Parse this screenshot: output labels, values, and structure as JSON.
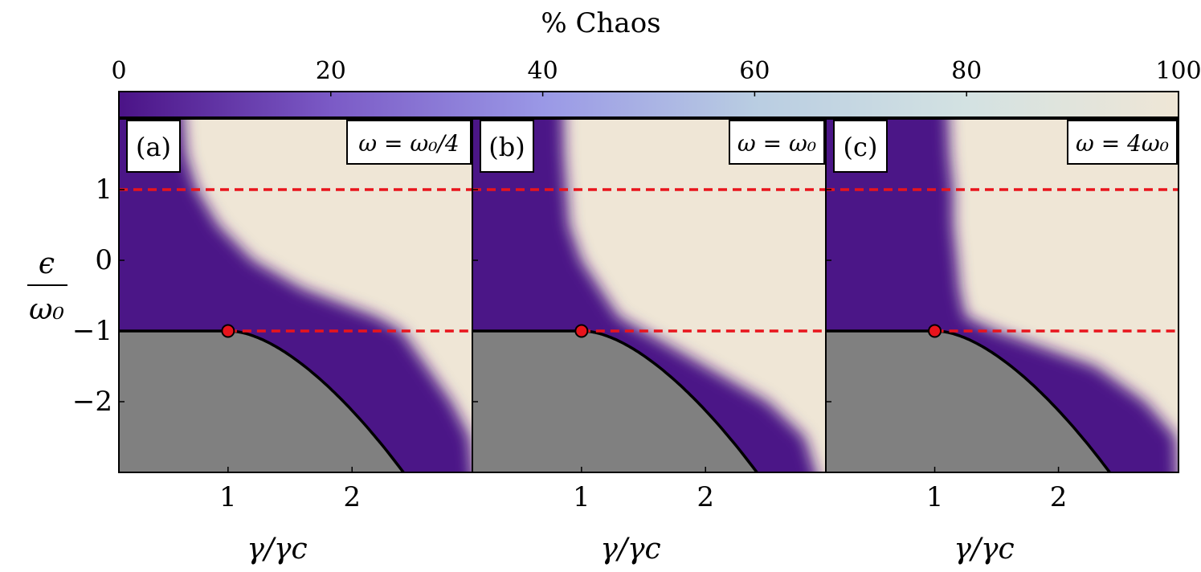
{
  "figure": {
    "colorbar": {
      "title": "% Chaos",
      "ticks": [
        "0",
        "20",
        "40",
        "60",
        "80",
        "100"
      ],
      "range": [
        0,
        100
      ],
      "colors": [
        "#4b1387",
        "#7b5ac6",
        "#9a98e6",
        "#b9cde2",
        "#d3e2e2",
        "#efe6d6"
      ]
    },
    "y_axis": {
      "label_top": "ϵ",
      "label_bottom": "ω₀",
      "ticks": [
        "1",
        "0",
        "−1",
        "−2"
      ]
    },
    "x_axis": {
      "label": "γ/γc",
      "ticks": [
        "1",
        "2"
      ]
    },
    "panels": [
      {
        "label": "(a)",
        "condition": "ω = ω₀/4"
      },
      {
        "label": "(b)",
        "condition": "ω = ω₀"
      },
      {
        "label": "(c)",
        "condition": "ω = 4ω₀"
      }
    ]
  },
  "chart_data": {
    "type": "heatmap",
    "value_label": "% Chaos",
    "zlim": [
      0,
      100
    ],
    "xlabel": "γ/γc",
    "ylabel": "ϵ/ω₀",
    "xlim": [
      0.12,
      2.97
    ],
    "ylim": [
      -3.0,
      2.0
    ],
    "xticks": [
      1,
      2
    ],
    "yticks": [
      1,
      0,
      -1,
      -2
    ],
    "dashed_lines_y": [
      1,
      -1
    ],
    "dashed_line_color": "#e8141c",
    "critical_point": {
      "x": 1,
      "y": -1,
      "color": "#e8141c"
    },
    "forbidden_region": {
      "color": "#808080",
      "boundary": "y = -1 for x <= 1; y = -(x^2 + 1/x^2)/2 for x > 1",
      "boundary_points": [
        [
          1.0,
          -1.0
        ],
        [
          1.25,
          -1.1
        ],
        [
          1.5,
          -1.35
        ],
        [
          1.75,
          -1.69
        ],
        [
          2.0,
          -2.13
        ],
        [
          2.25,
          -2.63
        ],
        [
          2.45,
          -3.0
        ]
      ]
    },
    "panels": [
      {
        "label": "(a)",
        "omega": "ω = ω₀/4",
        "chaos_onset_x": [
          [
            2.0,
            0.62
          ],
          [
            1.5,
            0.66
          ],
          [
            1.0,
            0.75
          ],
          [
            0.5,
            0.92
          ],
          [
            0.0,
            1.2
          ],
          [
            -0.4,
            1.6
          ],
          [
            -0.8,
            2.2
          ],
          [
            -1.0,
            2.4
          ],
          [
            -1.5,
            2.6
          ],
          [
            -2.0,
            2.8
          ],
          [
            -2.5,
            2.95
          ],
          [
            -3.0,
            3.0
          ]
        ]
      },
      {
        "label": "(b)",
        "omega": "ω = ω₀",
        "chaos_onset_x": [
          [
            2.0,
            0.85
          ],
          [
            1.5,
            0.86
          ],
          [
            1.0,
            0.88
          ],
          [
            0.5,
            0.9
          ],
          [
            0.0,
            1.0
          ],
          [
            -0.4,
            1.15
          ],
          [
            -0.8,
            1.3
          ],
          [
            -1.0,
            1.5
          ],
          [
            -1.5,
            2.0
          ],
          [
            -2.0,
            2.5
          ],
          [
            -2.5,
            2.8
          ],
          [
            -3.0,
            2.97
          ]
        ]
      },
      {
        "label": "(c)",
        "omega": "ω = 4ω₀",
        "chaos_onset_x": [
          [
            2.0,
            1.1
          ],
          [
            1.5,
            1.12
          ],
          [
            1.0,
            1.15
          ],
          [
            0.5,
            1.15
          ],
          [
            0.0,
            1.18
          ],
          [
            -0.4,
            1.2
          ],
          [
            -0.8,
            1.25
          ],
          [
            -1.0,
            1.5
          ],
          [
            -1.5,
            2.3
          ],
          [
            -2.0,
            2.7
          ],
          [
            -2.5,
            2.95
          ],
          [
            -3.0,
            2.97
          ]
        ]
      }
    ]
  }
}
